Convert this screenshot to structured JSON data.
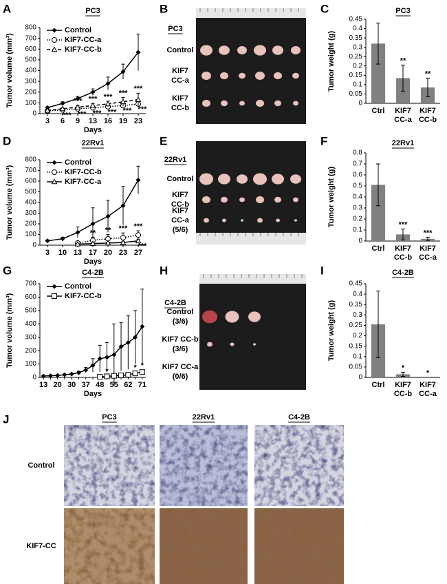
{
  "chart_data": [
    {
      "type": "line",
      "panel": "A",
      "title": "PC3",
      "xlabel": "Days",
      "ylabel": "Tumor volume (mm³)",
      "categories": [
        "3",
        "6",
        "9",
        "13",
        "16",
        "19",
        "23"
      ],
      "ylim": [
        0,
        800
      ],
      "yticks": [
        0,
        100,
        200,
        300,
        400,
        500,
        600,
        700,
        800
      ],
      "series": [
        {
          "name": "Control",
          "color": "#000000",
          "marker": "diamond",
          "dash": "solid",
          "values": [
            55,
            95,
            140,
            200,
            280,
            390,
            570
          ],
          "errors": [
            10,
            15,
            20,
            30,
            60,
            70,
            170
          ]
        },
        {
          "name": "KIF7-CC-a",
          "color": "#000000",
          "marker": "circle",
          "dash": "dotted",
          "values": [
            25,
            35,
            45,
            55,
            65,
            75,
            90
          ],
          "errors": [
            5,
            8,
            10,
            10,
            15,
            15,
            20
          ],
          "significance": [
            null,
            "***",
            "***",
            "***",
            "***",
            "***",
            "***"
          ],
          "significance_side": "below"
        },
        {
          "name": "KIF7-CC-b",
          "color": "#000000",
          "marker": "triangle",
          "dash": "dashed",
          "values": [
            30,
            45,
            60,
            75,
            90,
            110,
            130
          ],
          "errors": [
            5,
            10,
            15,
            20,
            25,
            40,
            60
          ],
          "significance": [
            null,
            null,
            "***",
            "***",
            "***",
            "***",
            "***"
          ],
          "significance_side": "above"
        }
      ]
    },
    {
      "type": "bar",
      "panel": "C",
      "title": "PC3",
      "ylabel": "Tumor weight (g)",
      "color": "#808080",
      "categories": [
        "Ctrl",
        [
          "KIF7",
          "CC-a"
        ],
        [
          "KIF7",
          "CC-b"
        ]
      ],
      "values": [
        0.32,
        0.135,
        0.085
      ],
      "errors": [
        0.11,
        0.07,
        0.05
      ],
      "significance": [
        null,
        "**",
        "**"
      ],
      "ylim": [
        0,
        0.45
      ],
      "yticks": [
        0,
        0.05,
        0.1,
        0.15,
        0.2,
        0.25,
        0.3,
        0.35,
        0.4,
        0.45
      ]
    },
    {
      "type": "line",
      "panel": "D",
      "title": "22Rv1",
      "xlabel": "Days",
      "ylabel": "Tumor volume (mm³)",
      "categories": [
        "3",
        "10",
        "13",
        "17",
        "20",
        "23",
        "27"
      ],
      "ylim": [
        0,
        800
      ],
      "yticks": [
        0,
        100,
        200,
        300,
        400,
        500,
        600,
        700,
        800
      ],
      "series": [
        {
          "name": "Control",
          "color": "#000000",
          "marker": "diamond",
          "dash": "solid",
          "values": [
            40,
            60,
            120,
            200,
            270,
            370,
            610
          ],
          "errors": [
            10,
            15,
            50,
            150,
            150,
            180,
            130
          ]
        },
        {
          "name": "KIF7-CC-b",
          "color": "#000000",
          "marker": "circle",
          "dash": "dotted",
          "values": [
            null,
            null,
            20,
            45,
            60,
            70,
            95
          ],
          "errors": [
            null,
            null,
            10,
            30,
            40,
            45,
            40
          ],
          "significance": [
            null,
            null,
            null,
            "**",
            "**",
            "***",
            "***"
          ],
          "significance_side": "above"
        },
        {
          "name": "KIF7-CC-a",
          "color": "#000000",
          "marker": "triangle",
          "dash": "solid",
          "values": [
            null,
            null,
            10,
            15,
            20,
            25,
            40
          ],
          "errors": [
            null,
            null,
            5,
            5,
            8,
            10,
            15
          ],
          "significance": [
            null,
            null,
            null,
            null,
            null,
            null,
            "***"
          ],
          "significance_side": "below"
        }
      ]
    },
    {
      "type": "bar",
      "panel": "F",
      "title": "22Rv1",
      "ylabel": "Tumor weight (g)",
      "color": "#808080",
      "categories": [
        "Ctrl",
        [
          "KIF7",
          "CC-b"
        ],
        [
          "KIF7",
          "CC-a"
        ]
      ],
      "values": [
        0.51,
        0.06,
        0.02
      ],
      "errors": [
        0.19,
        0.05,
        0.015
      ],
      "significance": [
        null,
        "***",
        "***"
      ],
      "ylim": [
        0,
        0.8
      ],
      "yticks": [
        0,
        0.1,
        0.2,
        0.3,
        0.4,
        0.5,
        0.6,
        0.7,
        0.8
      ]
    },
    {
      "type": "line",
      "panel": "G",
      "title": "C4-2B",
      "xlabel": "Days",
      "ylabel": "Tumor volume (mm³)",
      "categories": [
        "13",
        null,
        "20",
        null,
        "30",
        null,
        "37",
        null,
        "48",
        null,
        "55",
        null,
        "62",
        null,
        "71"
      ],
      "ylim": [
        0,
        700
      ],
      "yticks": [
        0,
        100,
        200,
        300,
        400,
        500,
        600,
        700
      ],
      "series": [
        {
          "name": "Control",
          "color": "#000000",
          "marker": "diamond",
          "dash": "solid",
          "values": [
            10,
            12,
            15,
            20,
            25,
            35,
            55,
            90,
            140,
            150,
            170,
            230,
            260,
            300,
            380
          ],
          "errors": [
            2,
            3,
            4,
            5,
            6,
            10,
            20,
            50,
            100,
            110,
            230,
            180,
            200,
            200,
            280
          ]
        },
        {
          "name": "KIF7-CC-b",
          "color": "#000000",
          "marker": "square",
          "dash": "solid",
          "values": [
            null,
            null,
            null,
            null,
            null,
            null,
            null,
            null,
            5,
            8,
            12,
            15,
            20,
            30,
            40
          ],
          "errors": [
            null,
            null,
            null,
            null,
            null,
            null,
            null,
            null,
            3,
            4,
            6,
            8,
            10,
            10,
            15
          ],
          "significance": [
            null,
            null,
            null,
            null,
            null,
            null,
            null,
            null,
            null,
            "*",
            null,
            null,
            null,
            "*",
            "*"
          ],
          "significance_side": "above"
        }
      ]
    },
    {
      "type": "bar",
      "panel": "I",
      "title": "C4-2B",
      "ylabel": "Tumor weight (g)",
      "color": "#808080",
      "categories": [
        "Ctrl",
        [
          "KIF7",
          "CC-b"
        ],
        [
          "KIF7",
          "CC-a"
        ]
      ],
      "values": [
        0.255,
        0.015,
        0
      ],
      "errors": [
        0.16,
        0.01,
        0
      ],
      "significance": [
        null,
        "*",
        "*"
      ],
      "ylim": [
        0,
        0.45
      ],
      "yticks": [
        0,
        0.05,
        0.1,
        0.15,
        0.2,
        0.25,
        0.3,
        0.35,
        0.4,
        0.45
      ]
    }
  ],
  "photos": [
    {
      "panel": "B",
      "title": "PC3",
      "rows": [
        [
          "Control"
        ],
        [
          "KIF7",
          "CC-a"
        ],
        [
          "KIF7",
          "CC-b"
        ]
      ]
    },
    {
      "panel": "E",
      "title": "22Rv1",
      "rows": [
        [
          "Control"
        ],
        [
          "KIF7",
          "CC-b"
        ],
        [
          "KIF7",
          "CC-a",
          "(5/6)"
        ]
      ]
    },
    {
      "panel": "H",
      "title": "C4-2B",
      "rows": [
        [
          "Control",
          "(3/6)"
        ],
        [
          "KIF7 CC-b",
          "(3/6)"
        ],
        [
          "KIF7 CC-a",
          "(0/6)"
        ]
      ]
    }
  ],
  "ihc": {
    "panel": "J",
    "columns": [
      "PC3",
      "22Rv1",
      "C4-2B"
    ],
    "rows": [
      "Control",
      "KIF7-CC"
    ]
  }
}
